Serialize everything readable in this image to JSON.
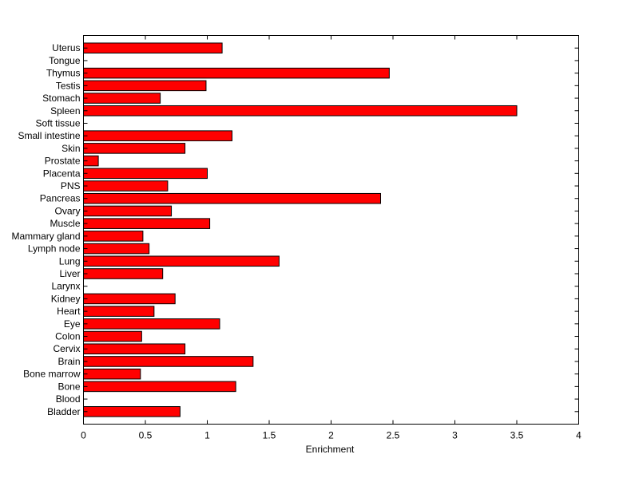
{
  "chart_data": {
    "type": "bar",
    "orientation": "horizontal",
    "title": "",
    "xlabel": "Enrichment",
    "ylabel": "",
    "xlim": [
      0,
      4
    ],
    "xticks": [
      "0",
      "0.5",
      "1",
      "1.5",
      "2",
      "2.5",
      "3",
      "3.5",
      "4"
    ],
    "grid": false,
    "bar_color": "#ff0000",
    "categories": [
      "Bladder",
      "Blood",
      "Bone",
      "Bone marrow",
      "Brain",
      "Cervix",
      "Colon",
      "Eye",
      "Heart",
      "Kidney",
      "Larynx",
      "Liver",
      "Lung",
      "Lymph node",
      "Mammary gland",
      "Muscle",
      "Ovary",
      "Pancreas",
      "PNS",
      "Placenta",
      "Prostate",
      "Skin",
      "Small intestine",
      "Soft tissue",
      "Spleen",
      "Stomach",
      "Testis",
      "Thymus",
      "Tongue",
      "Uterus"
    ],
    "values": [
      0.78,
      0,
      1.23,
      0.46,
      1.37,
      0.82,
      0.47,
      1.1,
      0.57,
      0.74,
      0,
      0.64,
      1.58,
      0.53,
      0.48,
      1.02,
      0.71,
      2.4,
      0.68,
      1.0,
      0.12,
      0.82,
      1.2,
      0,
      3.5,
      0.62,
      0.99,
      2.47,
      0,
      1.12
    ]
  }
}
